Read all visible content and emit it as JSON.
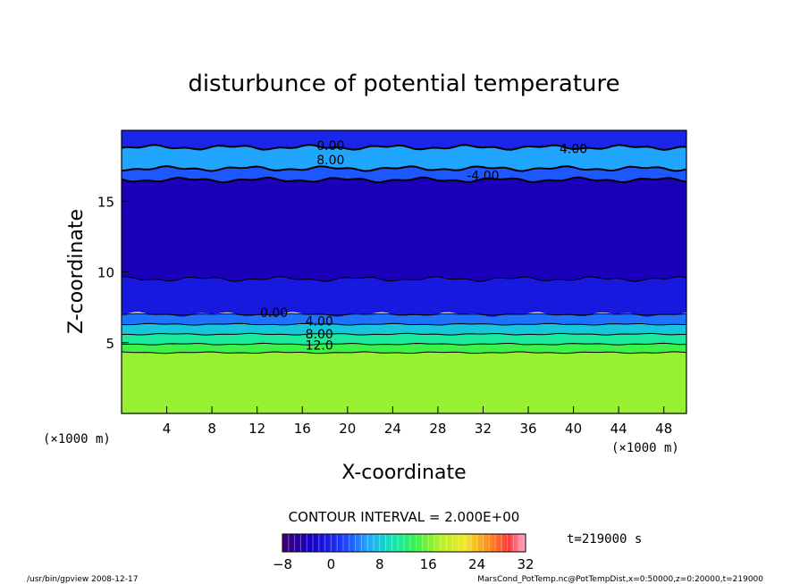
{
  "chart_data": {
    "type": "heatmap",
    "title": "disturbunce of potential temperature",
    "xlabel": "X-coordinate",
    "ylabel": "Z-coordinate",
    "x_unit_label": "(×1000 m)",
    "x_unit_label_left": "(×1000 m)",
    "xlim": [
      0,
      50
    ],
    "ylim": [
      0,
      20
    ],
    "x_ticks": [
      4,
      8,
      12,
      16,
      20,
      24,
      28,
      32,
      36,
      40,
      44,
      48
    ],
    "y_ticks": [
      5,
      10,
      15
    ],
    "grid": false,
    "contour_interval_label": "CONTOUR INTERVAL = 2.000E+00",
    "colorbar": {
      "min": -8,
      "max": 32,
      "ticks": [
        -8,
        0,
        8,
        16,
        24,
        32
      ],
      "time_label": "t=219000 s"
    },
    "bands": [
      {
        "z": [
          0,
          4.3
        ],
        "value": 17
      },
      {
        "z": [
          4.3,
          4.9
        ],
        "value": 14
      },
      {
        "z": [
          4.9,
          5.6
        ],
        "value": 11
      },
      {
        "z": [
          5.6,
          6.3
        ],
        "value": 8
      },
      {
        "z": [
          6.3,
          7.0
        ],
        "value": 4
      },
      {
        "z": [
          7.0,
          9.5
        ],
        "value": -1
      },
      {
        "z": [
          9.5,
          16.5
        ],
        "value": -4
      },
      {
        "z": [
          16.5,
          17.3
        ],
        "value": 3
      },
      {
        "z": [
          17.3,
          18.8
        ],
        "value": 6
      },
      {
        "z": [
          18.8,
          20
        ],
        "value": 0
      }
    ],
    "contour_labels": [
      {
        "x": 18.5,
        "z": 18.6,
        "text": "0.00"
      },
      {
        "x": 18.5,
        "z": 17.6,
        "text": "8.00"
      },
      {
        "x": 40,
        "z": 18.4,
        "text": "4.00"
      },
      {
        "x": 32,
        "z": 16.5,
        "text": "-4.00"
      },
      {
        "x": 13.5,
        "z": 6.8,
        "text": "0.00"
      },
      {
        "x": 17.5,
        "z": 6.2,
        "text": "4.00"
      },
      {
        "x": 17.5,
        "z": 5.3,
        "text": "8.00"
      },
      {
        "x": 17.5,
        "z": 4.5,
        "text": "12.0"
      }
    ]
  },
  "footer": {
    "program": "/usr/bin/gpview  2008-12-17",
    "source": "MarsCond_PotTemp.nc@PotTempDist,x=0:50000,z=0:20000,t=219000"
  }
}
